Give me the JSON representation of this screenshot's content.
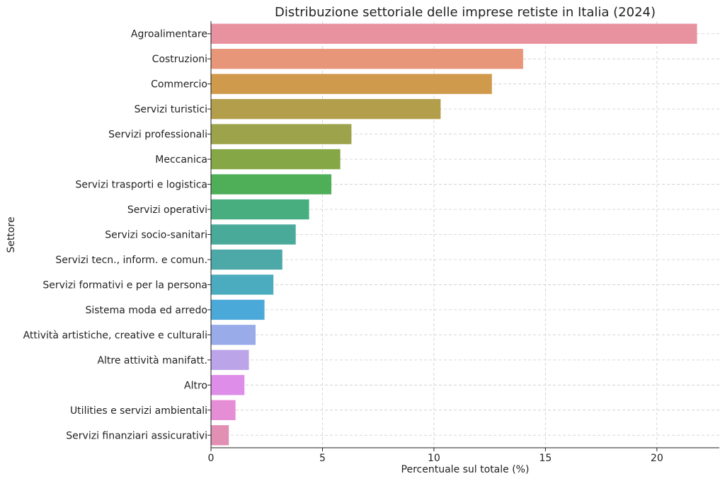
{
  "chart_data": {
    "type": "bar",
    "orientation": "horizontal",
    "title": "Distribuzione settoriale delle imprese retiste in Italia (2024)",
    "xlabel": "Percentuale sul totale (%)",
    "ylabel": "Settore",
    "xlim": [
      0,
      22.8
    ],
    "xticks": [
      0,
      5,
      10,
      15,
      20
    ],
    "grid": true,
    "categories": [
      "Agroalimentare",
      "Costruzioni",
      "Commercio",
      "Servizi turistici",
      "Servizi professionali",
      "Meccanica",
      "Servizi trasporti e logistica",
      "Servizi operativi",
      "Servizi socio-sanitari",
      "Servizi tecn., inform. e comun.",
      "Servizi formativi e per la persona",
      "Sistema moda ed arredo",
      "Attività artistiche, creative e culturali",
      "Altre attività manifatt.",
      "Altro",
      "Utilities e servizi ambientali",
      "Servizi finanziari assicurativi"
    ],
    "values": [
      21.8,
      14.0,
      12.6,
      10.3,
      6.3,
      5.8,
      5.4,
      4.4,
      3.8,
      3.2,
      2.8,
      2.4,
      2.0,
      1.7,
      1.5,
      1.1,
      0.8
    ],
    "colors": [
      "#e8919f",
      "#e8967a",
      "#d09a4c",
      "#b39e4c",
      "#9ca34a",
      "#86a746",
      "#4fae58",
      "#48ae80",
      "#4aaa9a",
      "#4da8a8",
      "#4bacbf",
      "#4ba9d9",
      "#99abe8",
      "#bca4e8",
      "#de8ee8",
      "#e58ed5",
      "#e18fb3"
    ]
  }
}
